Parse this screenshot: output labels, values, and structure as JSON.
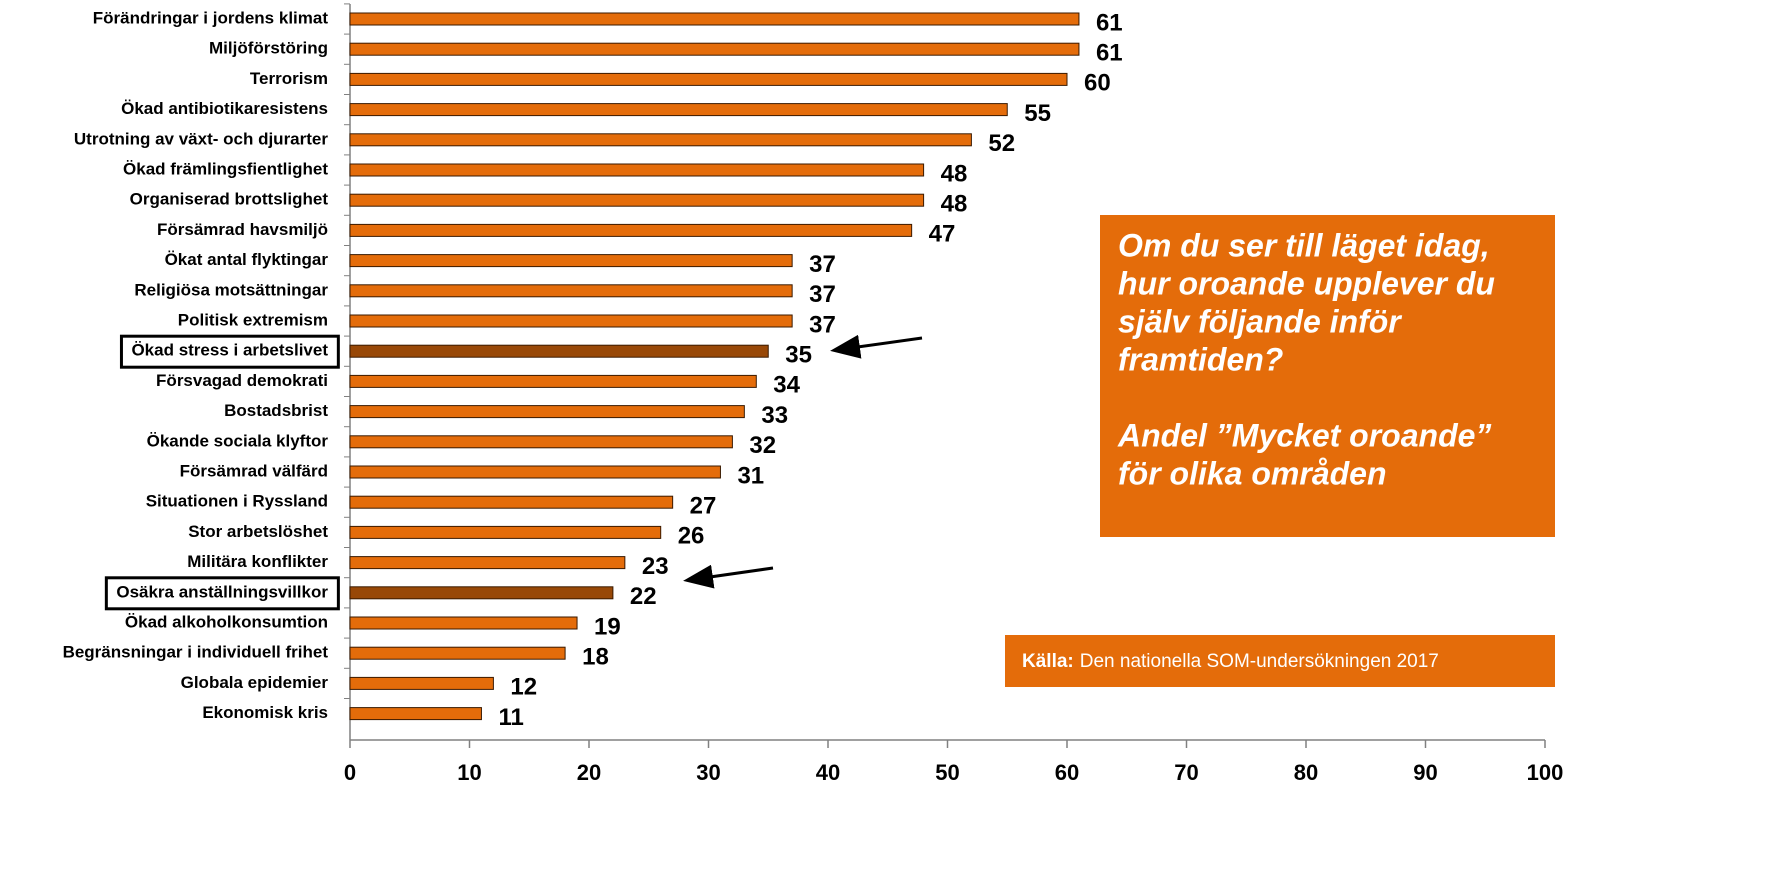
{
  "chart_data": {
    "type": "barh",
    "categories": [
      "Förändringar i jordens klimat",
      "Miljöförstöring",
      "Terrorism",
      "Ökad antibiotikaresistens",
      "Utrotning av  växt- och djurarter",
      "Ökad främlingsfientlighet",
      "Organiserad brottslighet",
      "Försämrad havsmiljö",
      "Ökat antal flyktingar",
      "Religiösa motsättningar",
      "Politisk extremism",
      "Ökad stress i arbetslivet",
      "Försvagad demokrati",
      "Bostadsbrist",
      "Ökande sociala klyftor",
      "Försämrad välfärd",
      "Situationen i Ryssland",
      "Stor arbetslöshet",
      "Militära konflikter",
      "Osäkra anställningsvillkor",
      "Ökad alkoholkonsumtion",
      "Begränsningar i individuell frihet",
      "Globala epidemier",
      "Ekonomisk kris"
    ],
    "values": [
      61,
      61,
      60,
      55,
      52,
      48,
      48,
      47,
      37,
      37,
      37,
      35,
      34,
      33,
      32,
      31,
      27,
      26,
      23,
      22,
      19,
      18,
      12,
      11
    ],
    "colors": [
      "#e46c0a",
      "#e46c0a",
      "#e46c0a",
      "#e46c0a",
      "#e46c0a",
      "#e46c0a",
      "#e46c0a",
      "#e46c0a",
      "#e46c0a",
      "#e46c0a",
      "#e46c0a",
      "#984807",
      "#e46c0a",
      "#e46c0a",
      "#e46c0a",
      "#e46c0a",
      "#e46c0a",
      "#e46c0a",
      "#e46c0a",
      "#984807",
      "#e46c0a",
      "#e46c0a",
      "#e46c0a",
      "#e46c0a"
    ],
    "highlighted": [
      11,
      19
    ],
    "xlim": [
      0,
      100
    ],
    "xticks": [
      0,
      10,
      20,
      30,
      40,
      50,
      60,
      70,
      80,
      90,
      100
    ],
    "annotation": [
      [
        "Om du ser till läget idag,",
        "hur oroande upplever du",
        "själv följande inför",
        "framtiden?"
      ],
      [
        "Andel ”Mycket oroande”",
        "för olika områden"
      ]
    ],
    "source_label": "Källa:",
    "source_text": "Den nationella SOM-undersökningen 2017"
  }
}
